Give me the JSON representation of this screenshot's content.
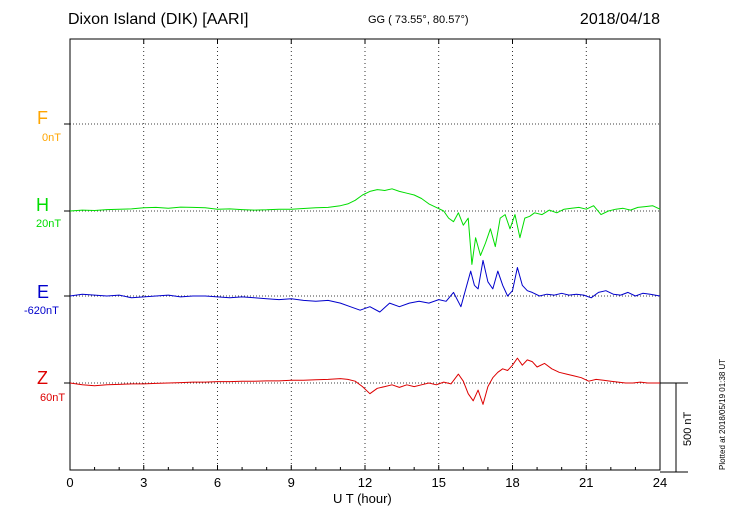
{
  "header": {
    "station": "Dixon Island (DIK)  [AARI]",
    "coords": "GG ( 73.55°,  80.57°)",
    "date": "2018/04/18"
  },
  "plotted_note": "Plotted at 2018/05/19 01:38 UT",
  "scale_bar_label": "500 nT",
  "colors": {
    "F": "#ffa500",
    "H": "#00dd00",
    "E": "#0000cc",
    "Z": "#dd0000"
  },
  "chart_data": {
    "type": "line",
    "xlabel": "U T (hour)",
    "xlim": [
      0,
      24
    ],
    "x_ticks": [
      "0",
      "3",
      "6",
      "9",
      "12",
      "15",
      "18",
      "21",
      "24"
    ],
    "scale_nT_per_bar": 500,
    "series": [
      {
        "name": "F",
        "baseline_label": "0nT",
        "x": [],
        "y": []
      },
      {
        "name": "H",
        "baseline_label": "20nT",
        "x": [
          0,
          0.5,
          1,
          1.5,
          2,
          2.5,
          3,
          3.5,
          4,
          4.5,
          5,
          5.5,
          6,
          6.5,
          7,
          7.5,
          8,
          8.5,
          9,
          9.5,
          10,
          10.5,
          11,
          11.3,
          11.6,
          11.9,
          12.2,
          12.5,
          12.8,
          13.1,
          13.4,
          13.7,
          14,
          14.3,
          14.6,
          14.9,
          15.2,
          15.4,
          15.6,
          15.8,
          16.0,
          16.2,
          16.35,
          16.5,
          16.7,
          16.9,
          17.1,
          17.3,
          17.5,
          17.7,
          17.9,
          18.1,
          18.3,
          18.5,
          18.7,
          18.9,
          19.2,
          19.5,
          19.8,
          20.1,
          20.4,
          20.7,
          21.0,
          21.3,
          21.6,
          21.9,
          22.2,
          22.5,
          22.8,
          23.1,
          23.4,
          23.7,
          24
        ],
        "y": [
          0,
          5,
          3,
          8,
          10,
          12,
          18,
          20,
          15,
          22,
          20,
          18,
          10,
          12,
          8,
          5,
          7,
          10,
          10,
          14,
          18,
          20,
          30,
          40,
          60,
          90,
          110,
          120,
          115,
          125,
          110,
          100,
          90,
          70,
          40,
          20,
          0,
          -40,
          -60,
          -10,
          -80,
          -40,
          -300,
          -150,
          -250,
          -180,
          -100,
          -200,
          -40,
          -20,
          -100,
          -20,
          -150,
          -40,
          -30,
          -10,
          -20,
          5,
          -10,
          10,
          15,
          20,
          10,
          30,
          -20,
          0,
          10,
          15,
          5,
          20,
          25,
          30,
          10
        ]
      },
      {
        "name": "E",
        "baseline_label": "-620nT",
        "x": [
          0,
          0.5,
          1,
          1.5,
          2,
          2.5,
          3,
          3.5,
          4,
          4.5,
          5,
          5.5,
          6,
          6.5,
          7,
          7.5,
          8,
          8.5,
          9,
          9.5,
          10,
          10.5,
          11,
          11.4,
          11.8,
          12.2,
          12.6,
          13.0,
          13.4,
          13.8,
          14.2,
          14.6,
          15.0,
          15.3,
          15.6,
          15.9,
          16.1,
          16.3,
          16.45,
          16.6,
          16.8,
          17.0,
          17.2,
          17.4,
          17.6,
          17.8,
          18.0,
          18.2,
          18.4,
          18.6,
          18.8,
          19.1,
          19.4,
          19.7,
          20.0,
          20.3,
          20.6,
          20.9,
          21.2,
          21.5,
          21.8,
          22.1,
          22.4,
          22.7,
          23.0,
          23.3,
          23.6,
          24
        ],
        "y": [
          0,
          10,
          5,
          0,
          5,
          -10,
          -5,
          0,
          5,
          -5,
          0,
          0,
          -5,
          -10,
          -5,
          -10,
          -15,
          -20,
          -15,
          -25,
          -30,
          -25,
          -40,
          -60,
          -80,
          -60,
          -90,
          -40,
          -60,
          -40,
          -30,
          -40,
          -20,
          -30,
          20,
          -60,
          40,
          140,
          60,
          40,
          200,
          80,
          40,
          140,
          60,
          0,
          30,
          160,
          60,
          30,
          20,
          0,
          10,
          5,
          15,
          5,
          10,
          5,
          -10,
          20,
          30,
          10,
          5,
          20,
          0,
          15,
          10,
          0
        ]
      },
      {
        "name": "Z",
        "baseline_label": "60nT",
        "x": [
          0,
          0.5,
          1,
          1.5,
          2,
          2.5,
          3,
          3.5,
          4,
          4.5,
          5,
          5.5,
          6,
          6.5,
          7,
          7.5,
          8,
          8.5,
          9,
          9.5,
          10,
          10.5,
          11,
          11.3,
          11.6,
          11.9,
          12.2,
          12.5,
          12.8,
          13.1,
          13.4,
          13.7,
          14.0,
          14.3,
          14.6,
          14.9,
          15.2,
          15.5,
          15.8,
          16.0,
          16.2,
          16.4,
          16.6,
          16.8,
          17.0,
          17.2,
          17.4,
          17.6,
          17.8,
          18.0,
          18.2,
          18.4,
          18.6,
          18.8,
          19.0,
          19.3,
          19.6,
          19.9,
          20.2,
          20.5,
          20.8,
          21.1,
          21.4,
          21.7,
          22.0,
          22.3,
          22.6,
          22.9,
          23.2,
          23.5,
          24
        ],
        "y": [
          0,
          -10,
          -15,
          -10,
          -8,
          -5,
          -5,
          -2,
          0,
          2,
          5,
          5,
          8,
          8,
          10,
          10,
          12,
          12,
          15,
          15,
          18,
          20,
          25,
          20,
          10,
          -20,
          -60,
          -30,
          -20,
          -10,
          -25,
          -10,
          -20,
          -10,
          0,
          -10,
          5,
          -5,
          50,
          10,
          -60,
          -100,
          -40,
          -120,
          -20,
          30,
          60,
          80,
          70,
          100,
          140,
          100,
          130,
          120,
          90,
          110,
          80,
          60,
          50,
          40,
          30,
          10,
          20,
          15,
          10,
          5,
          0,
          0,
          5,
          0,
          0
        ]
      }
    ]
  }
}
